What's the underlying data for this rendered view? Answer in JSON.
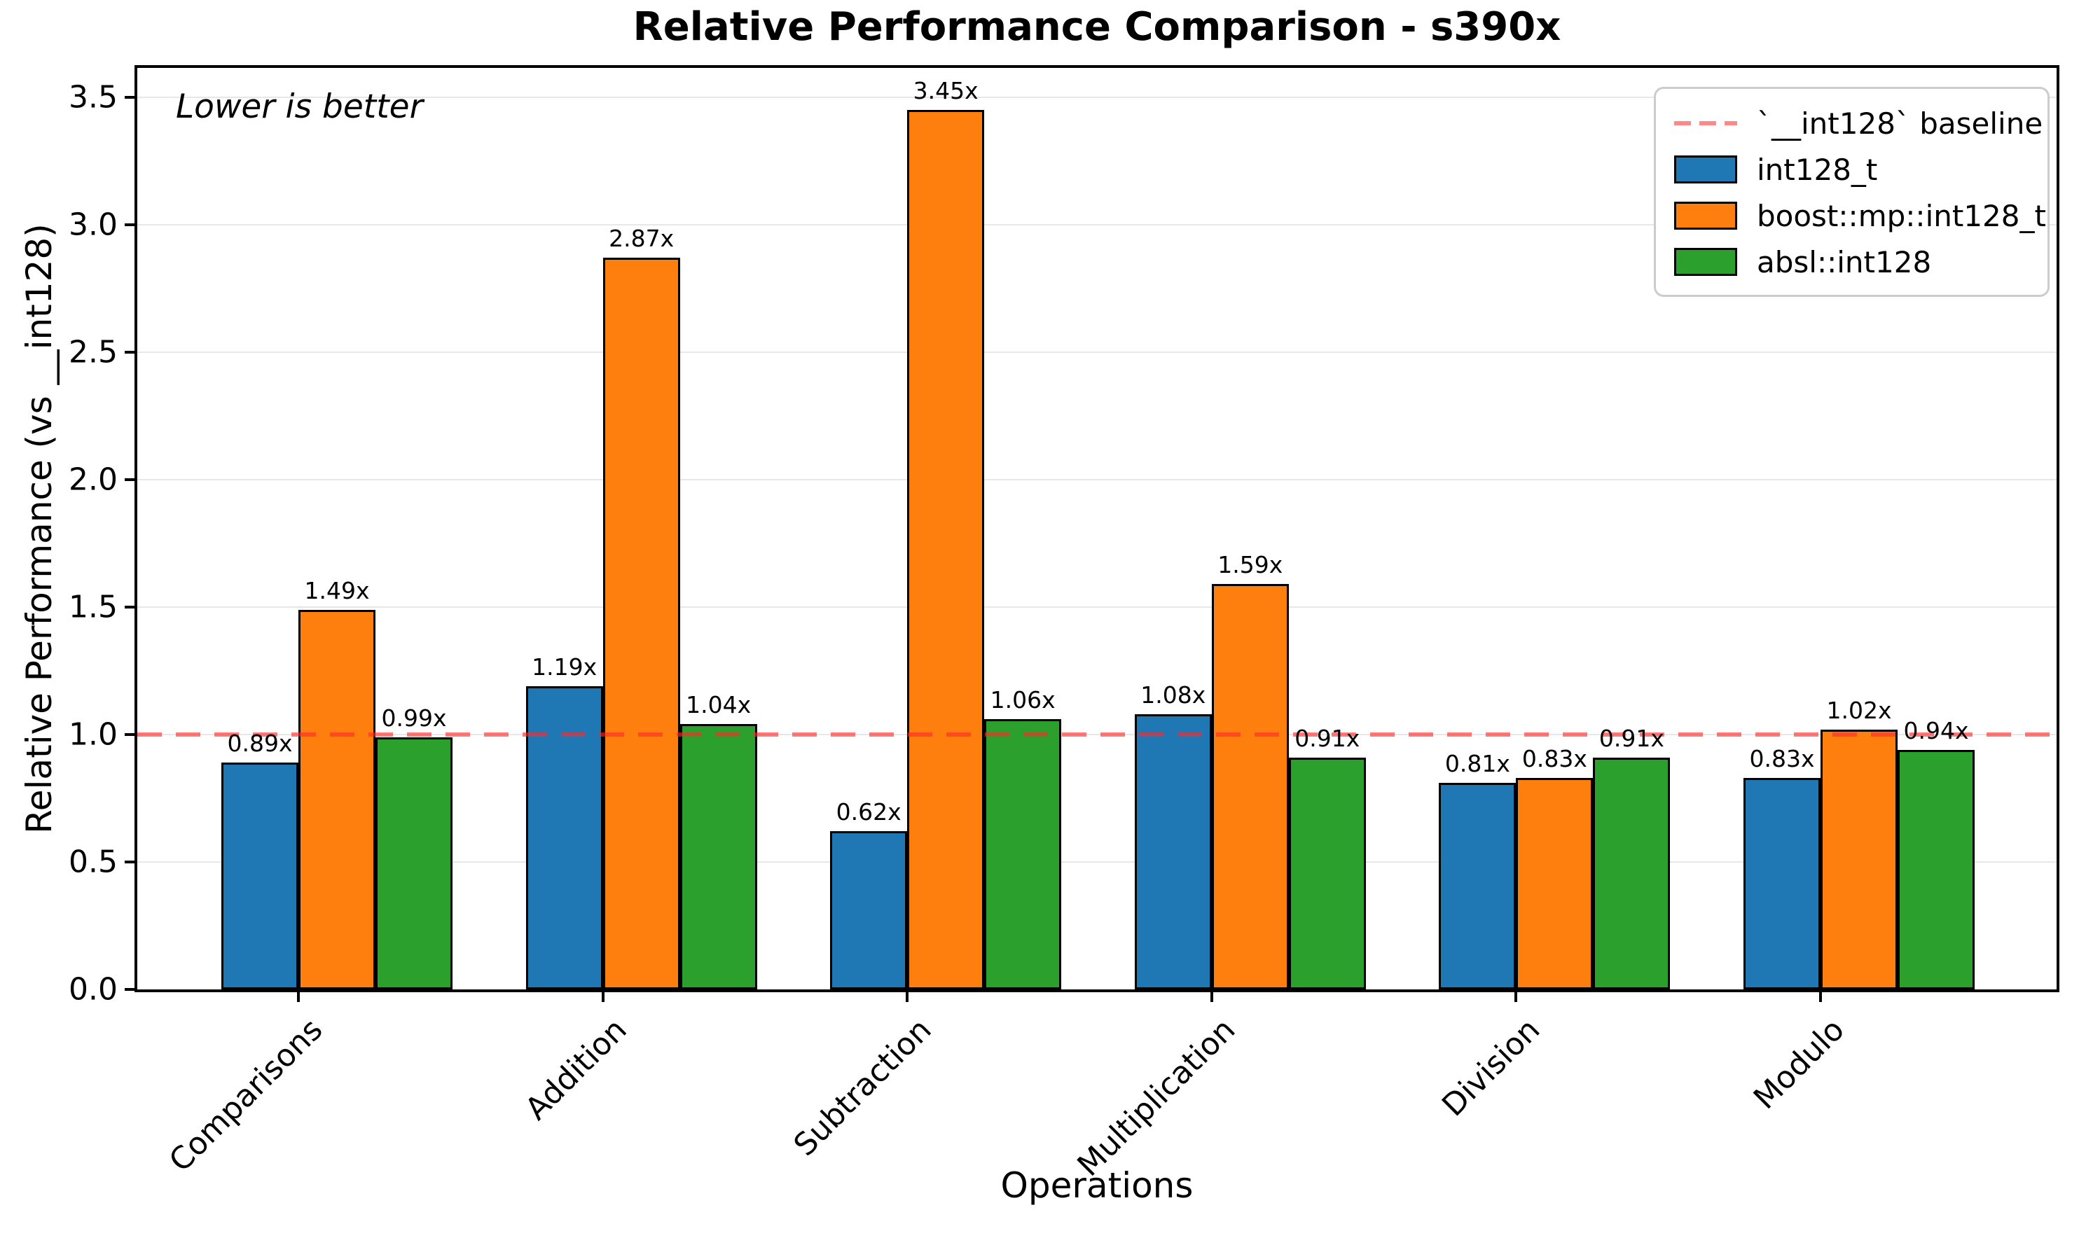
{
  "chart_data": {
    "type": "bar",
    "title": "Relative Performance Comparison - s390x",
    "xlabel": "Operations",
    "ylabel": "Relative Performance (vs __int128)",
    "annotation": "Lower is better",
    "categories": [
      "Comparisons",
      "Addition",
      "Subtraction",
      "Multiplication",
      "Division",
      "Modulo"
    ],
    "series": [
      {
        "name": "int128_t",
        "color": "#1f77b4",
        "values": [
          0.89,
          1.19,
          0.62,
          1.08,
          0.81,
          0.83
        ]
      },
      {
        "name": "boost::mp::int128_t",
        "color": "#ff7f0e",
        "values": [
          1.49,
          2.87,
          3.45,
          1.59,
          0.83,
          1.02
        ]
      },
      {
        "name": "absl::int128",
        "color": "#2ca02c",
        "values": [
          0.99,
          1.04,
          1.06,
          0.91,
          0.91,
          0.94
        ]
      }
    ],
    "value_suffix": "x",
    "value_decimals": 2,
    "baseline": {
      "value": 1.0,
      "label": "`__int128` baseline",
      "color": "#f57474"
    },
    "yticks": [
      0.0,
      0.5,
      1.0,
      1.5,
      2.0,
      2.5,
      3.0,
      3.5
    ],
    "ylim": [
      0,
      3.64
    ],
    "grid": "horizontal",
    "legend_position": "upper right",
    "bar_edge_color": "#000000"
  }
}
